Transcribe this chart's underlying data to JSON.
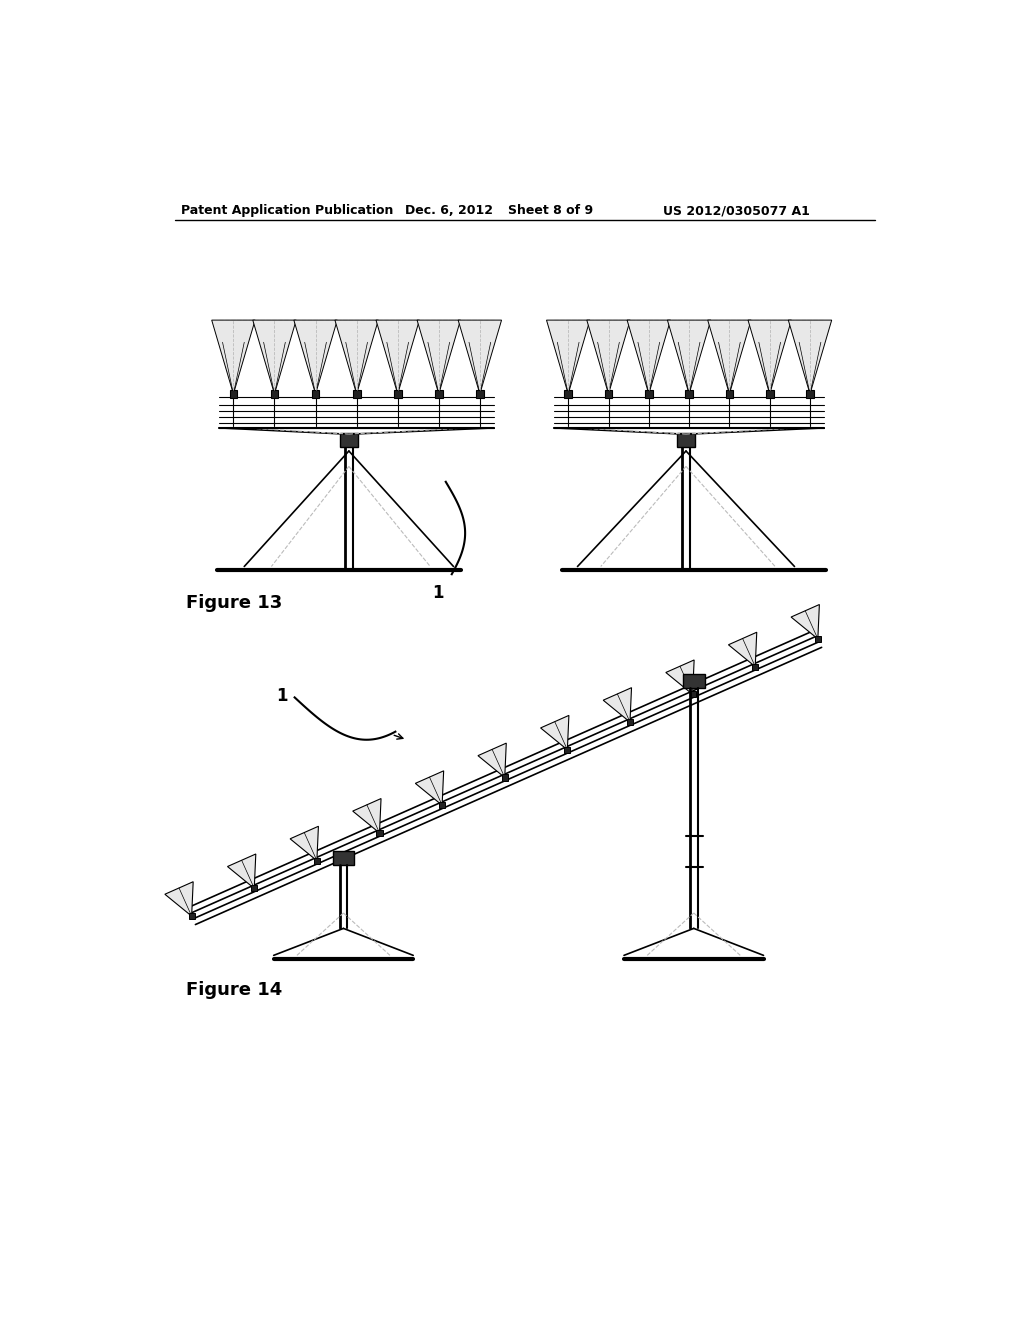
{
  "background_color": "#ffffff",
  "header_text": "Patent Application Publication",
  "header_date": "Dec. 6, 2012",
  "header_sheet": "Sheet 8 of 9",
  "header_patent": "US 2012/0305077 A1",
  "fig13_label": "Figure 13",
  "fig14_label": "Figure 14",
  "label_1": "1",
  "line_color": "#000000",
  "light_gray": "#bbbbbb",
  "dark_gray": "#444444",
  "medium_gray": "#888888"
}
